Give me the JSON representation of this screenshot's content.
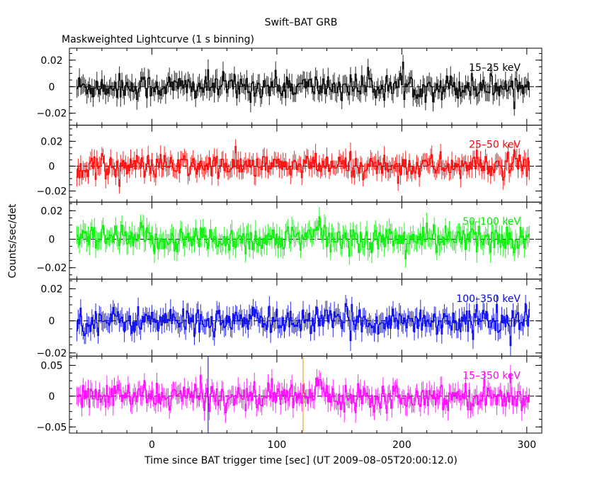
{
  "chart_data": {
    "type": "line",
    "title": "Swift–BAT GRB",
    "subtitle": "Maskweighted Lightcurve (1 s binning)",
    "xlabel": "Time since BAT trigger time [sec] (UT 2009–08–05T20:00:12.0)",
    "ylabel": "Counts/sec/det",
    "xlim": [
      -66,
      312
    ],
    "x_ticks": [
      0,
      100,
      200,
      300
    ],
    "x_tick_labels": [
      "0",
      "100",
      "200",
      "300"
    ],
    "data_range": [
      -60,
      302
    ],
    "grid": false,
    "markers": [
      {
        "x": 45,
        "color": "#0000cc"
      },
      {
        "x": 121,
        "color": "#ff8800"
      }
    ],
    "panels": [
      {
        "name": "15–25 keV",
        "color": "#000000",
        "ylim": [
          -0.029,
          0.029
        ],
        "yticks": [
          -0.02,
          0,
          0.02
        ],
        "ytick_labels": [
          "−0.02",
          "0",
          "0.02"
        ],
        "noise": 0.0065,
        "features": []
      },
      {
        "name": "25–50 keV",
        "color": "#ff0000",
        "ylim": [
          -0.029,
          0.033
        ],
        "yticks": [
          -0.02,
          0,
          0.02
        ],
        "ytick_labels": [
          "−0.02",
          "0",
          "0.02"
        ],
        "noise": 0.0065,
        "features": []
      },
      {
        "name": "50–100 keV",
        "color": "#00ee00",
        "ylim": [
          -0.028,
          0.026
        ],
        "yticks": [
          -0.02,
          0,
          0.02
        ],
        "ytick_labels": [
          "−0.02",
          "0",
          "0.02"
        ],
        "noise": 0.0065,
        "features": [
          {
            "start": 128,
            "end": 140,
            "value": 0.008
          }
        ]
      },
      {
        "name": "100–350 keV",
        "color": "#0000ee",
        "ylim": [
          -0.022,
          0.026
        ],
        "yticks": [
          -0.02,
          0,
          0.02
        ],
        "ytick_labels": [
          "−0.02",
          "0",
          "0.02"
        ],
        "noise": 0.0055,
        "features": []
      },
      {
        "name": "15–350 keV",
        "color": "#ff00ff",
        "ylim": [
          -0.06,
          0.065
        ],
        "yticks": [
          -0.05,
          0,
          0.05
        ],
        "ytick_labels": [
          "−0.05",
          "0",
          "0.05"
        ],
        "noise": 0.014,
        "features": [
          {
            "start": 128,
            "end": 140,
            "value": 0.02
          }
        ]
      }
    ]
  }
}
